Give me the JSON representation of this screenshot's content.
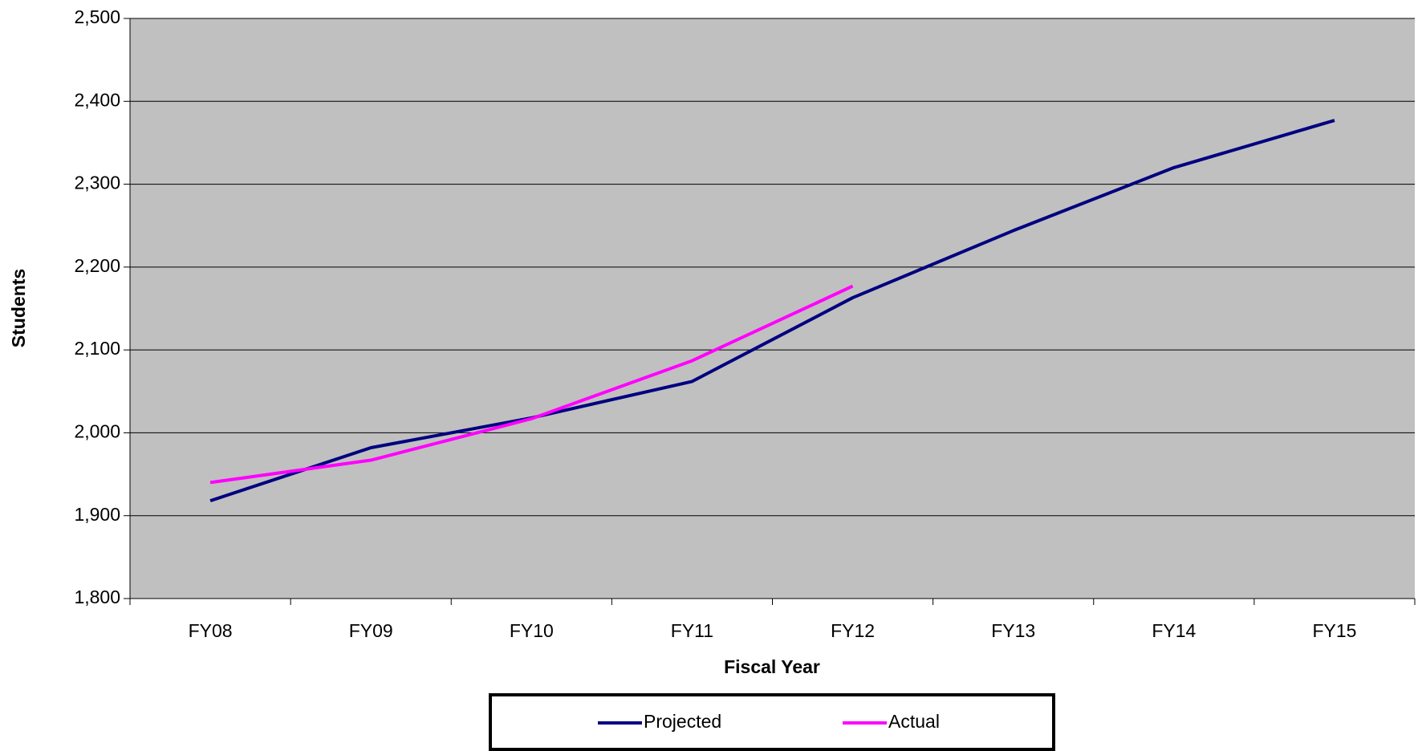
{
  "chart_data": {
    "type": "line",
    "xlabel": "Fiscal Year",
    "ylabel": "Students",
    "categories": [
      "FY08",
      "FY09",
      "FY10",
      "FY11",
      "FY12",
      "FY13",
      "FY14",
      "FY15"
    ],
    "series": [
      {
        "name": "Projected",
        "color": "#000080",
        "values": [
          1918,
          1982,
          2018,
          2062,
          2163,
          2244,
          2320,
          2377
        ]
      },
      {
        "name": "Actual",
        "color": "#ff00ff",
        "values": [
          1940,
          1967,
          2017,
          2087,
          2177,
          null,
          null,
          null
        ]
      }
    ],
    "ylim": [
      1800,
      2500
    ],
    "yticks": [
      {
        "value": 1800,
        "label": "1,800"
      },
      {
        "value": 1900,
        "label": "1,900"
      },
      {
        "value": 2000,
        "label": "2,000"
      },
      {
        "value": 2100,
        "label": "2,100"
      },
      {
        "value": 2200,
        "label": "2,200"
      },
      {
        "value": 2300,
        "label": "2,300"
      },
      {
        "value": 2400,
        "label": "2,400"
      },
      {
        "value": 2500,
        "label": "2,500"
      }
    ],
    "grid": true,
    "plot_background": "#c0c0c0",
    "legend": "bottom"
  }
}
